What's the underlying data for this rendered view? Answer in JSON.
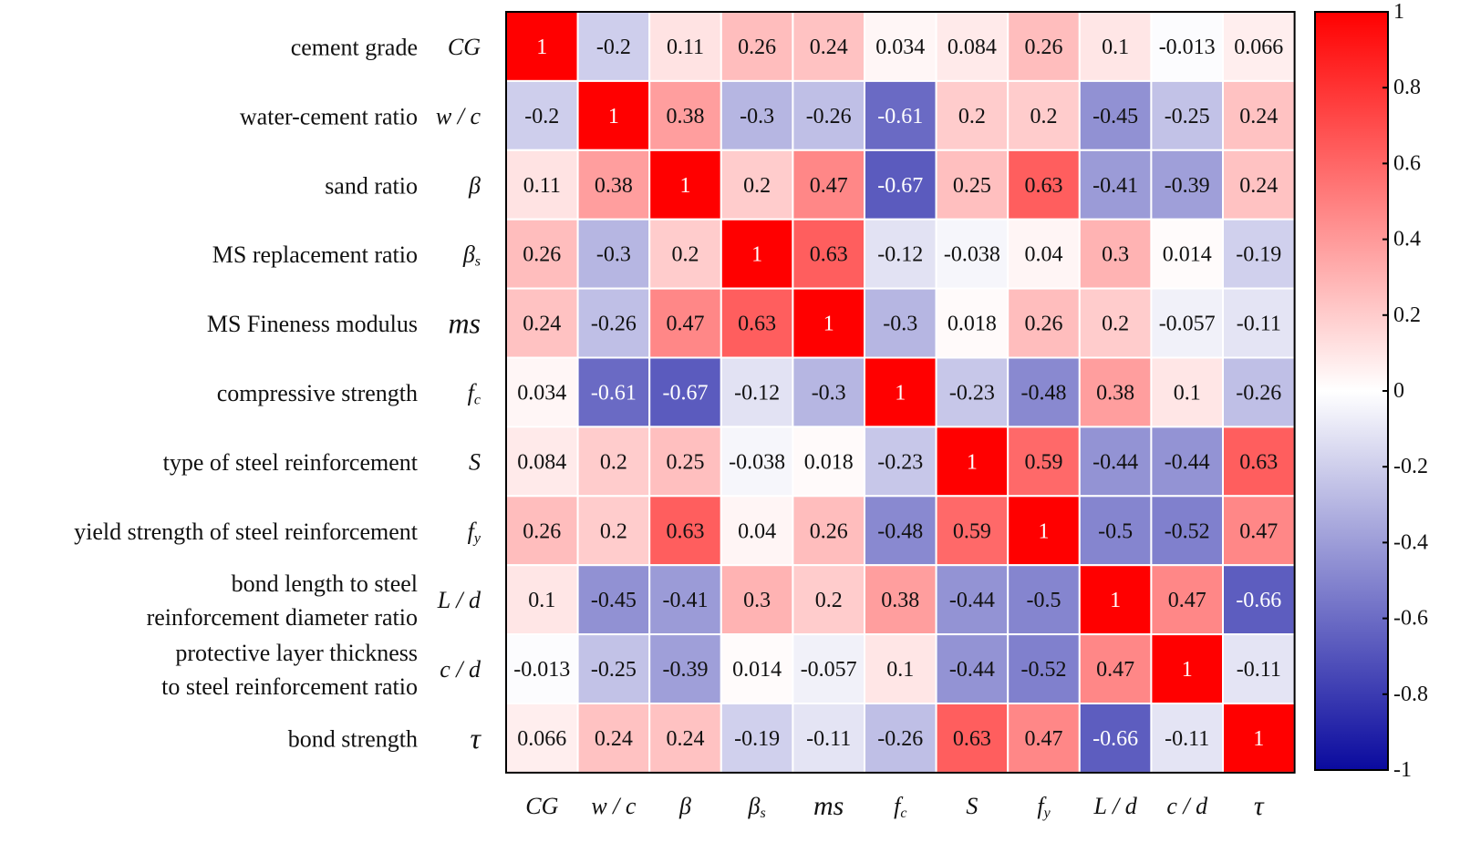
{
  "chart_data": {
    "type": "heatmap",
    "title": "",
    "variables": [
      {
        "label": "cement grade",
        "symbol": "CG"
      },
      {
        "label": "water-cement ratio",
        "symbol": "w / c"
      },
      {
        "label": "sand ratio",
        "symbol": "β"
      },
      {
        "label": "MS replacement ratio",
        "symbol": "β",
        "subscript": "s"
      },
      {
        "label": "MS Fineness modulus",
        "symbol": "ms"
      },
      {
        "label": "compressive strength",
        "symbol": "f",
        "subscript": "c"
      },
      {
        "label": "type of steel reinforcement",
        "symbol": "S"
      },
      {
        "label": "yield strength of steel reinforcement",
        "symbol": "f",
        "subscript": "y"
      },
      {
        "label": "bond length to steel reinforcement diameter ratio",
        "label_lines": [
          "bond length to steel",
          "reinforcement diameter ratio"
        ],
        "symbol": "L / d"
      },
      {
        "label": "protective layer thickness to steel reinforcement ratio",
        "label_lines": [
          "protective layer thickness",
          "to steel reinforcement ratio"
        ],
        "symbol": "c / d"
      },
      {
        "label": "bond strength",
        "symbol": "τ"
      }
    ],
    "values": [
      [
        1,
        -0.2,
        0.11,
        0.26,
        0.24,
        0.034,
        0.084,
        0.26,
        0.1,
        -0.013,
        0.066
      ],
      [
        -0.2,
        1,
        0.38,
        -0.3,
        -0.26,
        -0.61,
        0.2,
        0.2,
        -0.45,
        -0.25,
        0.24
      ],
      [
        0.11,
        0.38,
        1,
        0.2,
        0.47,
        -0.67,
        0.25,
        0.63,
        -0.41,
        -0.39,
        0.24
      ],
      [
        0.26,
        -0.3,
        0.2,
        1,
        0.63,
        -0.12,
        -0.038,
        0.04,
        0.3,
        0.014,
        -0.19
      ],
      [
        0.24,
        -0.26,
        0.47,
        0.63,
        1,
        -0.3,
        0.018,
        0.26,
        0.2,
        -0.057,
        -0.11
      ],
      [
        0.034,
        -0.61,
        -0.67,
        -0.12,
        -0.3,
        1,
        -0.23,
        -0.48,
        0.38,
        0.1,
        -0.26
      ],
      [
        0.084,
        0.2,
        0.25,
        -0.038,
        0.018,
        -0.23,
        1,
        0.59,
        -0.44,
        -0.44,
        0.63
      ],
      [
        0.26,
        0.2,
        0.63,
        0.04,
        0.26,
        -0.48,
        0.59,
        1,
        -0.5,
        -0.52,
        0.47
      ],
      [
        0.1,
        -0.45,
        -0.41,
        0.3,
        0.2,
        0.38,
        -0.44,
        -0.5,
        1,
        0.47,
        -0.66
      ],
      [
        -0.013,
        -0.25,
        -0.39,
        0.014,
        -0.057,
        0.1,
        -0.44,
        -0.52,
        0.47,
        1,
        -0.11
      ],
      [
        0.066,
        0.24,
        0.24,
        -0.19,
        -0.11,
        -0.26,
        0.63,
        0.47,
        -0.66,
        -0.11,
        1
      ]
    ],
    "colorbar": {
      "range": [
        -1,
        1
      ],
      "ticks": [
        1,
        0.8,
        0.6,
        0.4,
        0.2,
        0,
        -0.2,
        -0.4,
        -0.6,
        -0.8,
        -1
      ],
      "colors": {
        "negative": "#0a0a9e",
        "zero": "#ffffff",
        "positive": "#ff0000"
      },
      "placement": "right"
    }
  }
}
